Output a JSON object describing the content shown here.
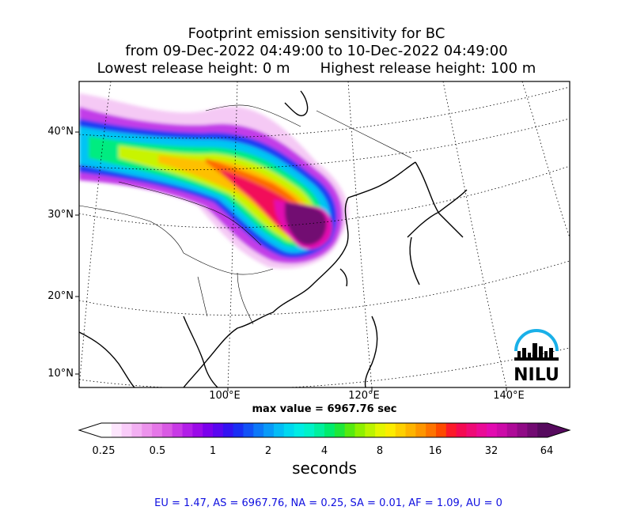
{
  "title": {
    "line1": "Footprint emission sensitivity for BC",
    "line2": "from 09-Dec-2022 04:49:00 to 10-Dec-2022 04:49:00",
    "line3_left": "Lowest release height: 0 m",
    "line3_right": "Highest release height: 100 m"
  },
  "map": {
    "lat_labels": [
      "40°N",
      "30°N",
      "20°N",
      "10°N"
    ],
    "lon_labels": [
      "100°E",
      "120°E",
      "140°E"
    ],
    "logo_text": "NILU",
    "logo_color": "#1ab0e8"
  },
  "max_value_text": "max value = 6967.76 sec",
  "colorbar": {
    "tick_labels": [
      "0.25",
      "0.5",
      "1",
      "2",
      "4",
      "8",
      "16",
      "32",
      "64"
    ],
    "units": "seconds",
    "colors": [
      "#ffffff",
      "#fde6fd",
      "#f9ccf9",
      "#f3b0f3",
      "#ec93ec",
      "#e577e8",
      "#d95ae4",
      "#c83ae6",
      "#b21ee8",
      "#9b0ae8",
      "#7b00ec",
      "#5a06f0",
      "#3412f2",
      "#1a2ef4",
      "#1252f6",
      "#0c78f8",
      "#089af8",
      "#04bcf6",
      "#00d8f0",
      "#00ece4",
      "#00f2c8",
      "#00f09e",
      "#00ec6e",
      "#1ee83a",
      "#56ea10",
      "#8ef000",
      "#bcf400",
      "#e4f600",
      "#fcec00",
      "#fed000",
      "#feb400",
      "#fe9600",
      "#fe7400",
      "#fe4a00",
      "#fc1a2a",
      "#f40a52",
      "#ee0a76",
      "#ea0a96",
      "#e20ab0",
      "#cc0aa8",
      "#ae0a98",
      "#900a86",
      "#720a72",
      "#560a5e"
    ]
  },
  "stats_text": "EU = 1.47,  AS = 6967.76,  NA = 0.25,  SA = 0.01,  AF = 1.09,  AU = 0"
}
